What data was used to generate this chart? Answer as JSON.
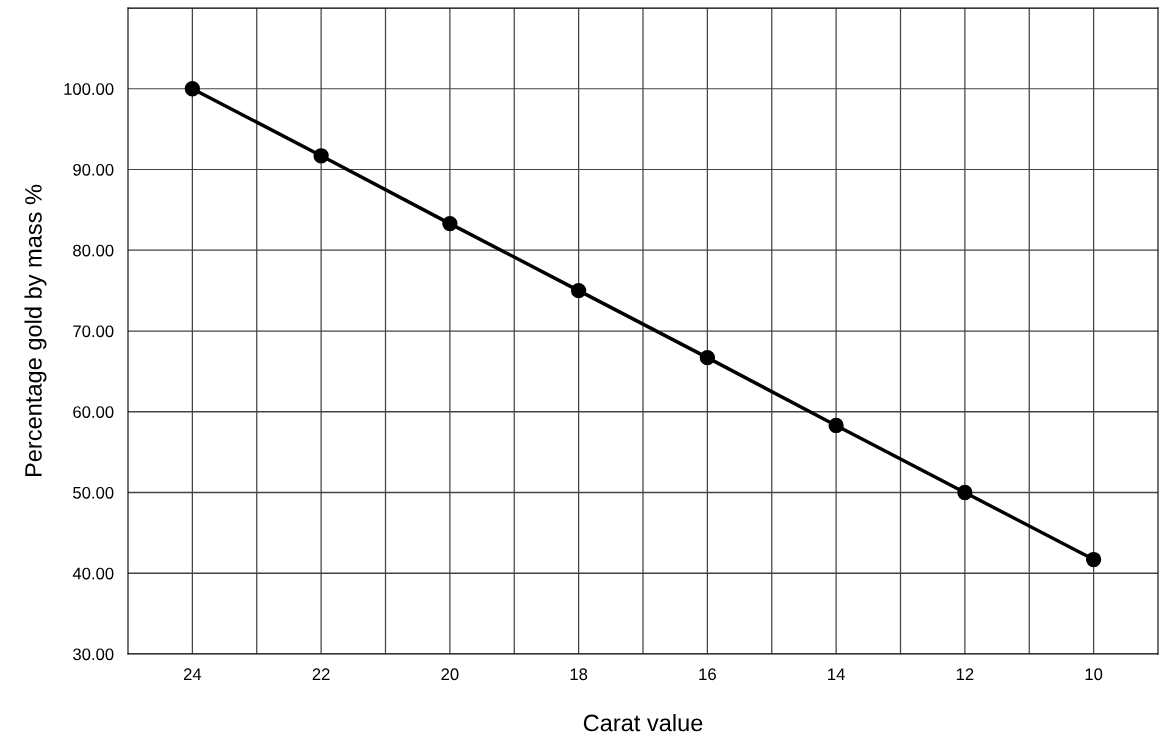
{
  "chart_data": {
    "type": "line",
    "xlabel": "Carat value",
    "ylabel": "Percentage gold by mass %",
    "x": [
      24,
      22,
      20,
      18,
      16,
      14,
      12,
      10
    ],
    "series": [
      {
        "color": "#000000",
        "values": [
          100,
          91.7,
          83.3,
          75,
          66.7,
          58.3,
          50,
          41.7
        ]
      }
    ],
    "xlim": [
      25,
      9
    ],
    "xticks": [
      24,
      {
        "value": 23,
        "label": null
      },
      22,
      {
        "value": 21,
        "label": null
      },
      20,
      {
        "value": 19,
        "label": null
      },
      18,
      {
        "value": 17,
        "label": null
      },
      16,
      {
        "value": 15,
        "label": null
      },
      14,
      {
        "value": 13,
        "label": null
      },
      12,
      {
        "value": 11,
        "label": null
      },
      10
    ],
    "ylim": [
      30,
      110
    ],
    "yticks": [
      {
        "value": 30,
        "label": "30.00"
      },
      {
        "value": 40,
        "label": "40.00"
      },
      {
        "value": 50,
        "label": "50.00"
      },
      {
        "value": 60,
        "label": "60.00"
      },
      {
        "value": 70,
        "label": "70.00"
      },
      {
        "value": 80,
        "label": "80.00"
      },
      {
        "value": 90,
        "label": "90.00"
      },
      {
        "value": 100,
        "label": "100.00"
      },
      {
        "value": 110,
        "label": null
      }
    ],
    "grid": true,
    "marker": "circle",
    "line_style": "solid",
    "legend": false
  }
}
